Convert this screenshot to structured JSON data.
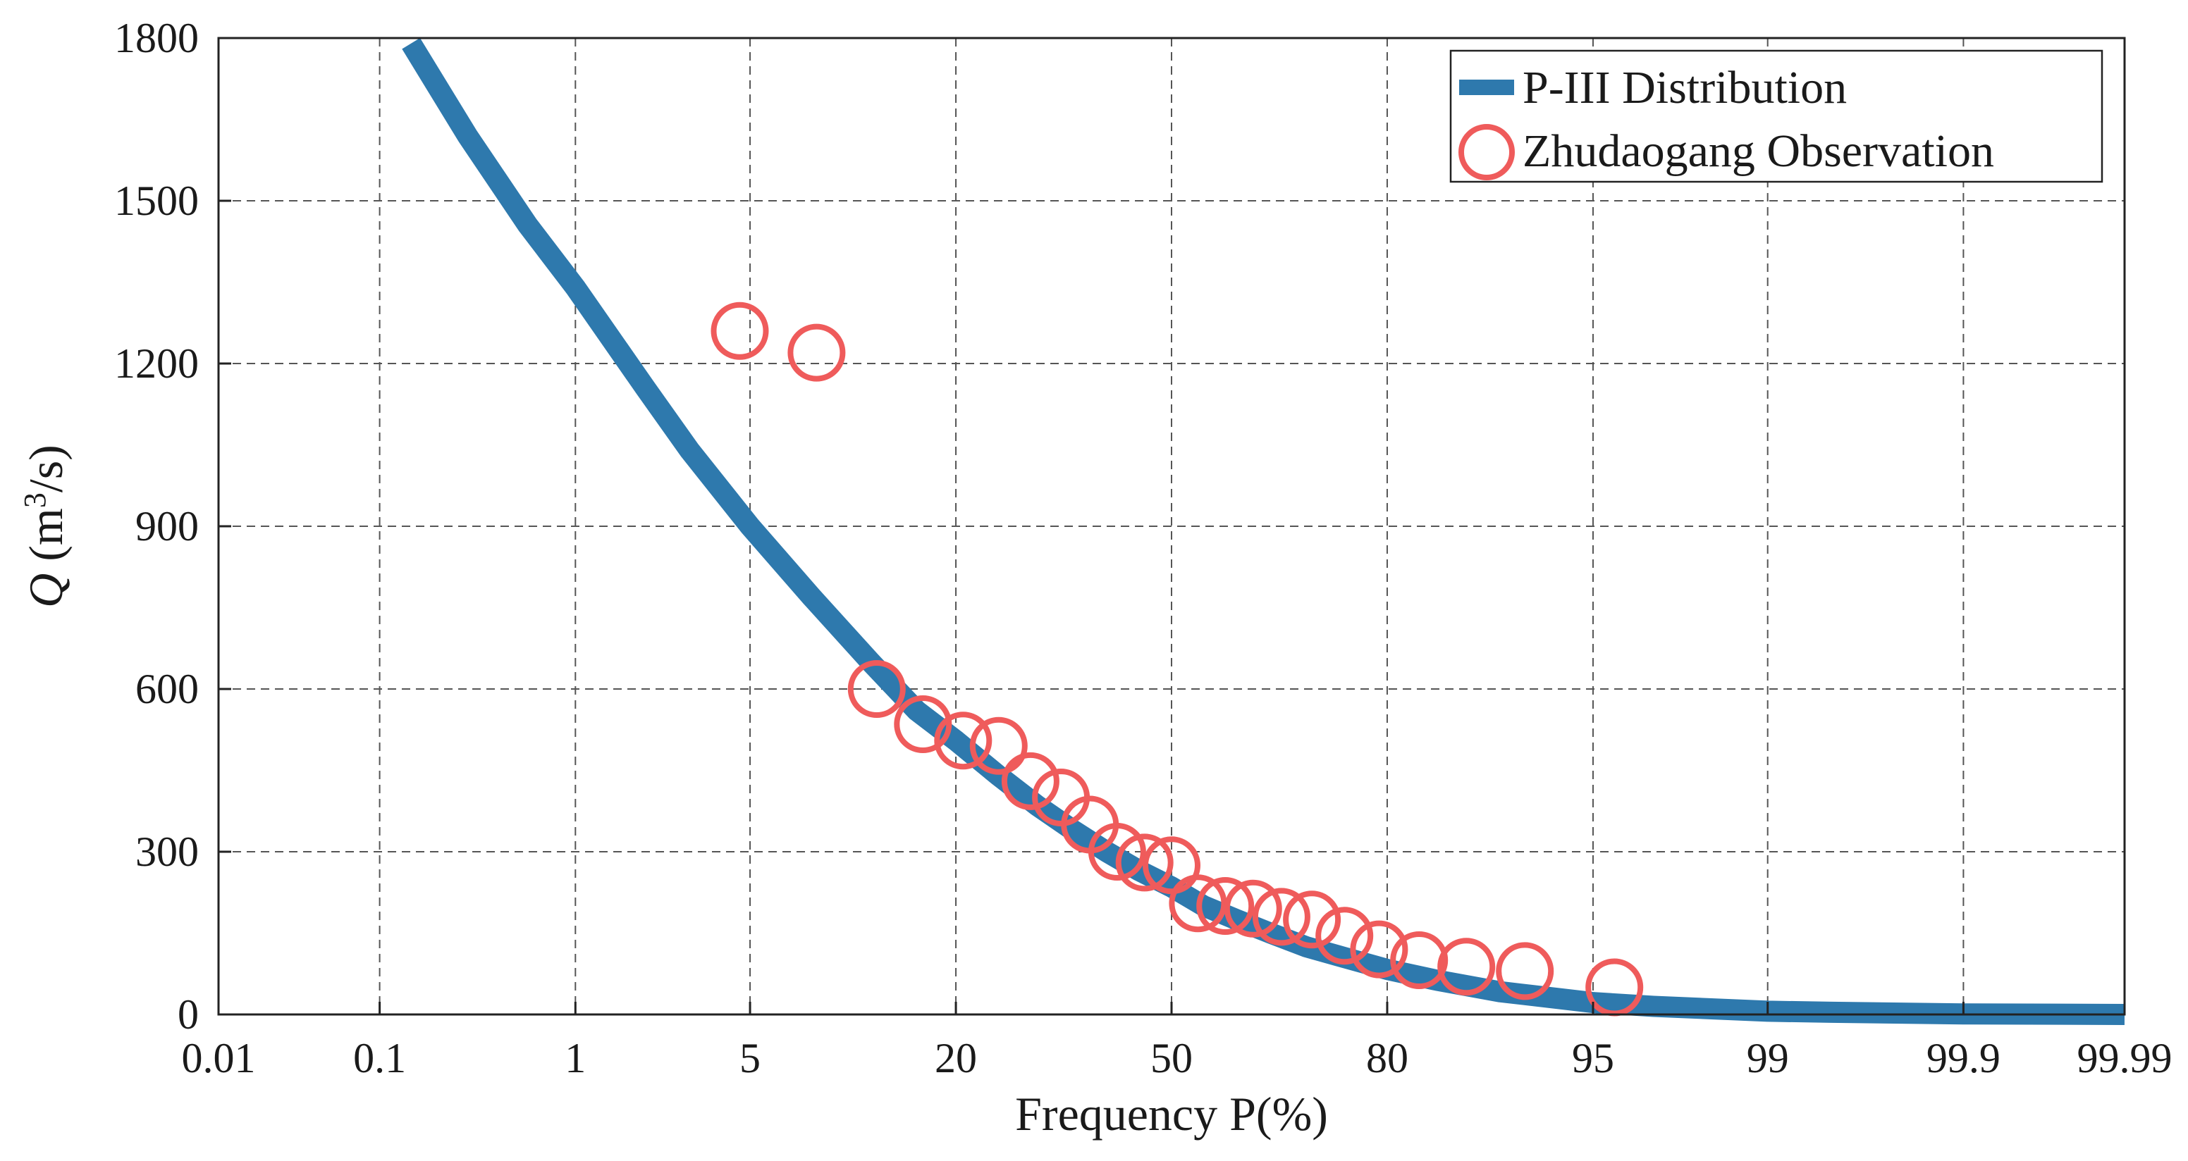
{
  "chart_data": {
    "type": "line",
    "title": "",
    "xlabel": "Frequency P(%)",
    "ylabel": {
      "symbol": "Q",
      "unit_prefix": " (m",
      "unit_sup": "3",
      "unit_suffix": "/s)"
    },
    "x_scale": "probability",
    "x_ticks": [
      0.01,
      0.1,
      1,
      5,
      20,
      50,
      80,
      95,
      99,
      99.9,
      99.99
    ],
    "x_tick_labels": [
      "0.01",
      "0.1",
      "1",
      "5",
      "20",
      "50",
      "80",
      "95",
      "99",
      "99.9",
      "99.99"
    ],
    "xlim": [
      0.01,
      99.99
    ],
    "ylim": [
      0,
      1800
    ],
    "y_ticks": [
      0,
      300,
      600,
      900,
      1200,
      1500,
      1800
    ],
    "y_tick_labels": [
      "0",
      "300",
      "600",
      "900",
      "1200",
      "1500",
      "1800"
    ],
    "grid": true,
    "legend_position": "top-right",
    "series": [
      {
        "name": "P-III Distribution",
        "kind": "line",
        "color": "#2e79ad",
        "x": [
          0.15,
          0.3,
          0.6,
          1,
          2,
          3,
          5,
          8,
          12,
          16,
          20,
          25,
          30,
          35,
          40,
          45,
          50,
          55,
          60,
          65,
          70,
          75,
          80,
          85,
          90,
          95,
          97,
          99,
          99.5,
          99.9,
          99.99
        ],
        "y": [
          1790,
          1620,
          1455,
          1340,
          1155,
          1040,
          900,
          770,
          650,
          560,
          505,
          440,
          385,
          340,
          300,
          265,
          235,
          200,
          175,
          150,
          125,
          105,
          83,
          63,
          42,
          22,
          15,
          6,
          4,
          1,
          0
        ]
      },
      {
        "name": "Zhudaogang Observation",
        "kind": "scatter",
        "color": "#ef5b5b",
        "x": [
          4.6,
          8.3,
          12.5,
          16.6,
          20.8,
          25.0,
          29.1,
          33.3,
          37.5,
          41.6,
          45.8,
          50.0,
          54.1,
          58.3,
          62.5,
          66.6,
          70.8,
          75.0,
          79.1,
          83.3,
          87.5,
          91.6,
          95.8
        ],
        "y": [
          1260,
          1220,
          600,
          535,
          505,
          495,
          430,
          400,
          350,
          300,
          280,
          275,
          205,
          200,
          195,
          180,
          175,
          145,
          120,
          100,
          88,
          80,
          50
        ]
      }
    ]
  }
}
